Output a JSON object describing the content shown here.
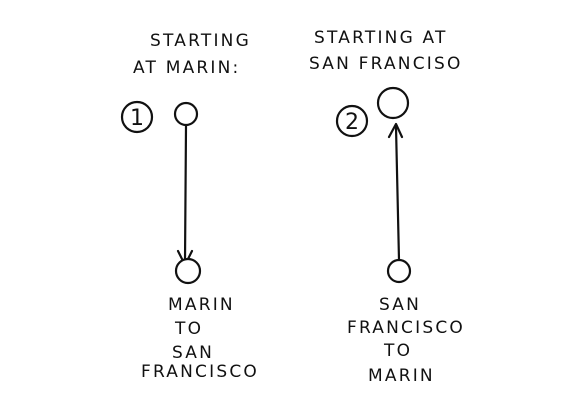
{
  "panels": [
    {
      "heading": [
        "STARTING",
        "AT MARIN:"
      ],
      "step_number": "1",
      "destination_label": [
        "MARIN",
        "TO",
        "SAN",
        "FRANCISCO"
      ]
    },
    {
      "heading": [
        "STARTING AT",
        "SAN FRANCISO"
      ],
      "step_number": "2",
      "destination_label": [
        "SAN",
        "FRANCISCO",
        "TO",
        "MARIN"
      ]
    }
  ]
}
